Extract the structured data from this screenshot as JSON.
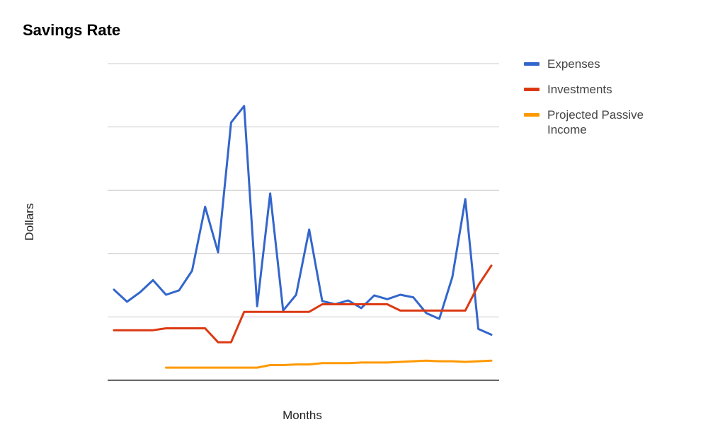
{
  "chart_data": {
    "type": "line",
    "title": "Savings Rate",
    "xlabel": "Months",
    "ylabel": "Dollars",
    "ylim": [
      0,
      5
    ],
    "grid": true,
    "legend_position": "right",
    "x": [
      1,
      2,
      3,
      4,
      5,
      6,
      7,
      8,
      9,
      10,
      11,
      12,
      13,
      14,
      15,
      16,
      17,
      18,
      19,
      20,
      21,
      22,
      23,
      24,
      25,
      26,
      27,
      28,
      29,
      30
    ],
    "series": [
      {
        "name": "Expenses",
        "color": "#3366cc",
        "values": [
          1.43,
          1.24,
          1.39,
          1.58,
          1.35,
          1.42,
          1.73,
          2.74,
          2.02,
          4.07,
          4.33,
          1.17,
          2.95,
          1.1,
          1.35,
          2.38,
          1.25,
          1.2,
          1.26,
          1.14,
          1.34,
          1.28,
          1.35,
          1.31,
          1.06,
          0.97,
          1.63,
          2.86,
          0.81,
          0.72
        ]
      },
      {
        "name": "Investments",
        "color": "#dc3912",
        "values": [
          0.79,
          0.79,
          0.79,
          0.79,
          0.82,
          0.82,
          0.82,
          0.82,
          0.6,
          0.6,
          1.08,
          1.08,
          1.08,
          1.08,
          1.08,
          1.08,
          1.2,
          1.2,
          1.2,
          1.2,
          1.2,
          1.2,
          1.1,
          1.1,
          1.1,
          1.1,
          1.1,
          1.1,
          1.5,
          1.81
        ]
      },
      {
        "name": "Projected Passive Income",
        "color": "#ff9900",
        "values": [
          null,
          null,
          null,
          null,
          0.2,
          0.2,
          0.2,
          0.2,
          0.2,
          0.2,
          0.2,
          0.2,
          0.24,
          0.24,
          0.25,
          0.25,
          0.27,
          0.27,
          0.27,
          0.28,
          0.28,
          0.28,
          0.29,
          0.3,
          0.31,
          0.3,
          0.3,
          0.29,
          0.3,
          0.31
        ]
      }
    ]
  }
}
